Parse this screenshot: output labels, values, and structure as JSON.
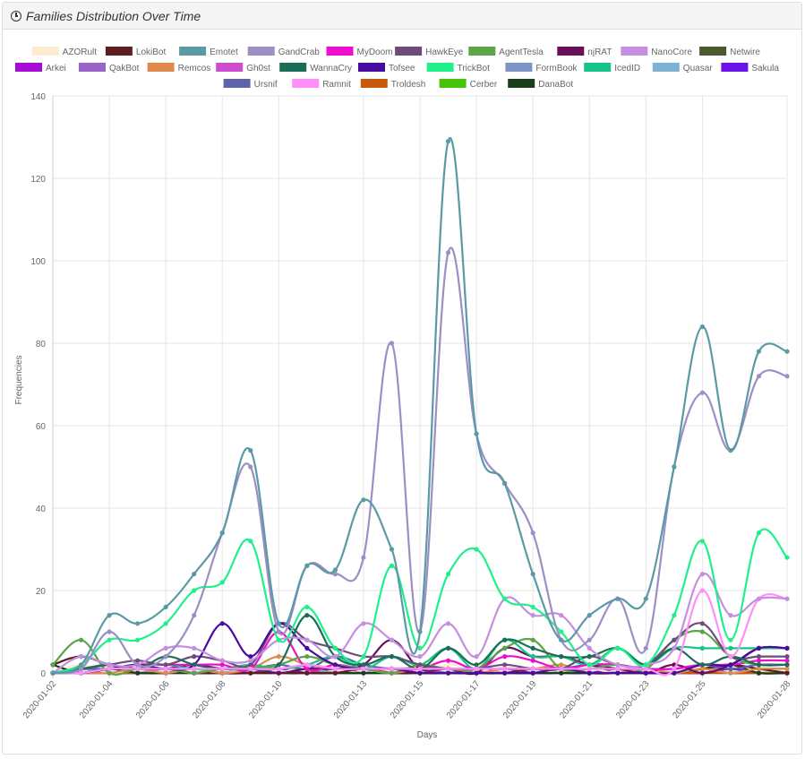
{
  "panel": {
    "title": "Families Distribution Over Time",
    "icon": "clock-icon"
  },
  "chart_data": {
    "type": "line",
    "xlabel": "Days",
    "ylabel": "Frequencies",
    "ylim": [
      0,
      140
    ],
    "yticks": [
      0,
      20,
      40,
      60,
      80,
      100,
      120,
      140
    ],
    "grid": true,
    "legend_position": "top",
    "x": [
      "2020-01-02",
      "2020-01-03",
      "2020-01-04",
      "2020-01-05",
      "2020-01-06",
      "2020-01-07",
      "2020-01-08",
      "2020-01-09",
      "2020-01-10",
      "2020-01-11",
      "2020-01-12",
      "2020-01-13",
      "2020-01-14",
      "2020-01-15",
      "2020-01-16",
      "2020-01-17",
      "2020-01-18",
      "2020-01-19",
      "2020-01-20",
      "2020-01-21",
      "2020-01-22",
      "2020-01-23",
      "2020-01-24",
      "2020-01-25",
      "2020-01-26",
      "2020-01-27",
      "2020-01-28"
    ],
    "xtick_labels": [
      "2020-01-02",
      "2020-01-04",
      "2020-01-06",
      "2020-01-08",
      "2020-01-10",
      "2020-01-13",
      "2020-01-15",
      "2020-01-17",
      "2020-01-19",
      "2020-01-21",
      "2020-01-23",
      "2020-01-25",
      "2020-01-28"
    ],
    "series": [
      {
        "name": "AZORult",
        "color": "#fdebd0",
        "values": [
          0,
          2,
          0,
          1,
          0,
          1,
          0,
          1,
          0,
          2,
          1,
          0,
          1,
          0,
          2,
          1,
          0,
          1,
          0,
          1,
          0,
          1,
          0,
          1,
          0,
          1,
          0
        ]
      },
      {
        "name": "LokiBot",
        "color": "#5c1e1e",
        "values": [
          2,
          4,
          2,
          1,
          1,
          0,
          0,
          0,
          0,
          0,
          0,
          1,
          0,
          0,
          0,
          0,
          0,
          1,
          1,
          0,
          0,
          0,
          0,
          1,
          2,
          1,
          0
        ]
      },
      {
        "name": "Emotet",
        "color": "#5a9aa5",
        "values": [
          0,
          2,
          14,
          12,
          16,
          24,
          34,
          54,
          12,
          26,
          25,
          42,
          30,
          10,
          129,
          58,
          46,
          24,
          8,
          14,
          18,
          18,
          50,
          84,
          54,
          78,
          78
        ]
      },
      {
        "name": "GandCrab",
        "color": "#9d8ec4",
        "values": [
          0,
          1,
          10,
          2,
          4,
          14,
          34,
          50,
          10,
          26,
          24,
          28,
          80,
          10,
          102,
          58,
          46,
          34,
          8,
          8,
          18,
          6,
          50,
          68,
          54,
          72,
          72
        ]
      },
      {
        "name": "MyDoom",
        "color": "#ee0ecc",
        "values": [
          0,
          0,
          1,
          2,
          2,
          2,
          2,
          1,
          10,
          1,
          2,
          1,
          1,
          1,
          3,
          1,
          4,
          3,
          1,
          2,
          2,
          1,
          1,
          2,
          2,
          3,
          3
        ]
      },
      {
        "name": "HawkEye",
        "color": "#6b4c7a",
        "values": [
          0,
          1,
          2,
          3,
          2,
          4,
          3,
          2,
          12,
          8,
          6,
          4,
          4,
          2,
          1,
          1,
          2,
          1,
          1,
          4,
          2,
          2,
          8,
          12,
          4,
          4,
          4
        ]
      },
      {
        "name": "AgentTesla",
        "color": "#5ba548",
        "values": [
          2,
          8,
          0,
          1,
          1,
          0,
          1,
          1,
          2,
          4,
          2,
          1,
          0,
          2,
          1,
          1,
          6,
          8,
          1,
          1,
          2,
          1,
          8,
          10,
          4,
          2,
          2
        ]
      },
      {
        "name": "njRAT",
        "color": "#6a0f5a",
        "values": [
          0,
          0,
          1,
          1,
          1,
          2,
          1,
          1,
          0,
          1,
          1,
          2,
          8,
          1,
          1,
          0,
          6,
          4,
          4,
          2,
          1,
          0,
          2,
          0,
          2,
          6,
          6
        ]
      },
      {
        "name": "NanoCore",
        "color": "#c58ee0",
        "values": [
          0,
          4,
          2,
          2,
          6,
          6,
          3,
          3,
          8,
          8,
          4,
          12,
          8,
          4,
          12,
          4,
          18,
          14,
          14,
          6,
          2,
          2,
          6,
          24,
          14,
          18,
          18
        ]
      },
      {
        "name": "Netwire",
        "color": "#4a5a2e",
        "values": [
          0,
          0,
          0,
          0,
          0,
          0,
          0,
          1,
          0,
          1,
          0,
          0,
          0,
          0,
          0,
          0,
          0,
          0,
          1,
          0,
          0,
          0,
          0,
          1,
          0,
          0,
          0
        ]
      },
      {
        "name": "Arkei",
        "color": "#a60cd6",
        "values": [
          0,
          1,
          0,
          0,
          0,
          1,
          0,
          1,
          0,
          0,
          1,
          0,
          0,
          0,
          0,
          0,
          0,
          1,
          0,
          0,
          0,
          0,
          0,
          0,
          1,
          0,
          0
        ]
      },
      {
        "name": "QakBot",
        "color": "#9a63c9",
        "values": [
          0,
          1,
          0,
          1,
          1,
          0,
          1,
          1,
          0,
          0,
          1,
          0,
          1,
          1,
          0,
          0,
          1,
          0,
          0,
          1,
          0,
          0,
          0,
          1,
          1,
          0,
          0
        ]
      },
      {
        "name": "Remcos",
        "color": "#e08a50",
        "values": [
          0,
          0,
          0,
          1,
          0,
          1,
          0,
          1,
          4,
          2,
          1,
          1,
          0,
          1,
          1,
          0,
          1,
          1,
          2,
          0,
          0,
          1,
          0,
          1,
          0,
          1,
          1
        ]
      },
      {
        "name": "Gh0st",
        "color": "#cc4dd1",
        "values": [
          0,
          0,
          1,
          0,
          0,
          1,
          0,
          0,
          1,
          0,
          0,
          1,
          0,
          0,
          1,
          0,
          0,
          1,
          0,
          0,
          1,
          0,
          0,
          0,
          1,
          0,
          0
        ]
      },
      {
        "name": "WannaCry",
        "color": "#1a6e58",
        "values": [
          0,
          1,
          2,
          1,
          4,
          2,
          1,
          1,
          2,
          14,
          4,
          2,
          4,
          1,
          6,
          2,
          8,
          6,
          4,
          4,
          6,
          2,
          6,
          2,
          4,
          2,
          2
        ]
      },
      {
        "name": "Tofsee",
        "color": "#4a0aa0",
        "values": [
          0,
          0,
          1,
          2,
          1,
          2,
          12,
          4,
          12,
          6,
          2,
          1,
          1,
          0,
          0,
          0,
          0,
          0,
          1,
          0,
          0,
          0,
          0,
          2,
          2,
          6,
          6
        ]
      },
      {
        "name": "TrickBot",
        "color": "#1ff08a",
        "values": [
          0,
          2,
          8,
          8,
          12,
          20,
          22,
          32,
          8,
          16,
          6,
          4,
          26,
          6,
          24,
          30,
          18,
          16,
          10,
          2,
          6,
          2,
          14,
          32,
          8,
          34,
          28
        ]
      },
      {
        "name": "FormBook",
        "color": "#7e94c4",
        "values": [
          0,
          1,
          0,
          0,
          1,
          0,
          0,
          1,
          0,
          0,
          0,
          1,
          0,
          0,
          1,
          0,
          0,
          1,
          0,
          0,
          0,
          0,
          0,
          0,
          1,
          0,
          0
        ]
      },
      {
        "name": "IcedID",
        "color": "#17c487",
        "values": [
          0,
          0,
          1,
          2,
          2,
          1,
          1,
          2,
          1,
          2,
          4,
          1,
          4,
          2,
          6,
          1,
          8,
          4,
          4,
          2,
          6,
          2,
          6,
          6,
          6,
          6,
          6
        ]
      },
      {
        "name": "Quasar",
        "color": "#7fb0d6",
        "values": [
          0,
          1,
          0,
          1,
          0,
          0,
          1,
          0,
          0,
          1,
          0,
          0,
          1,
          0,
          0,
          1,
          0,
          0,
          1,
          0,
          0,
          1,
          0,
          0,
          0,
          1,
          1
        ]
      },
      {
        "name": "Sakula",
        "color": "#6a12e8",
        "values": [
          0,
          0,
          0,
          0,
          0,
          1,
          0,
          0,
          1,
          0,
          0,
          0,
          1,
          0,
          0,
          0,
          1,
          0,
          0,
          0,
          1,
          0,
          0,
          0,
          1,
          0,
          0
        ]
      },
      {
        "name": "Ursnif",
        "color": "#5c63a8",
        "values": [
          0,
          1,
          1,
          2,
          1,
          2,
          1,
          1,
          2,
          1,
          4,
          2,
          1,
          1,
          1,
          1,
          1,
          1,
          1,
          2,
          1,
          1,
          1,
          2,
          1,
          2,
          2
        ]
      },
      {
        "name": "Ramnit",
        "color": "#ff8ef8",
        "values": [
          0,
          0,
          1,
          1,
          1,
          1,
          1,
          1,
          1,
          2,
          1,
          1,
          1,
          1,
          1,
          1,
          1,
          1,
          1,
          1,
          1,
          1,
          1,
          20,
          4,
          18,
          18
        ]
      },
      {
        "name": "Troldesh",
        "color": "#c65a0a",
        "values": [
          0,
          0,
          0,
          0,
          0,
          0,
          0,
          0,
          0,
          0,
          0,
          0,
          0,
          0,
          0,
          0,
          0,
          0,
          1,
          0,
          0,
          0,
          0,
          0,
          0,
          0,
          0
        ]
      },
      {
        "name": "Cerber",
        "color": "#44c50a",
        "values": [
          0,
          0,
          0,
          0,
          0,
          0,
          0,
          0,
          0,
          0,
          0,
          0,
          0,
          0,
          0,
          0,
          0,
          0,
          0,
          0,
          0,
          0,
          0,
          0,
          0,
          0,
          0
        ]
      },
      {
        "name": "DanaBot",
        "color": "#17401a",
        "values": [
          2,
          0,
          1,
          0,
          0,
          0,
          0,
          0,
          0,
          0,
          0,
          0,
          0,
          0,
          0,
          0,
          0,
          0,
          0,
          0,
          0,
          0,
          0,
          1,
          2,
          0,
          0
        ]
      }
    ]
  }
}
